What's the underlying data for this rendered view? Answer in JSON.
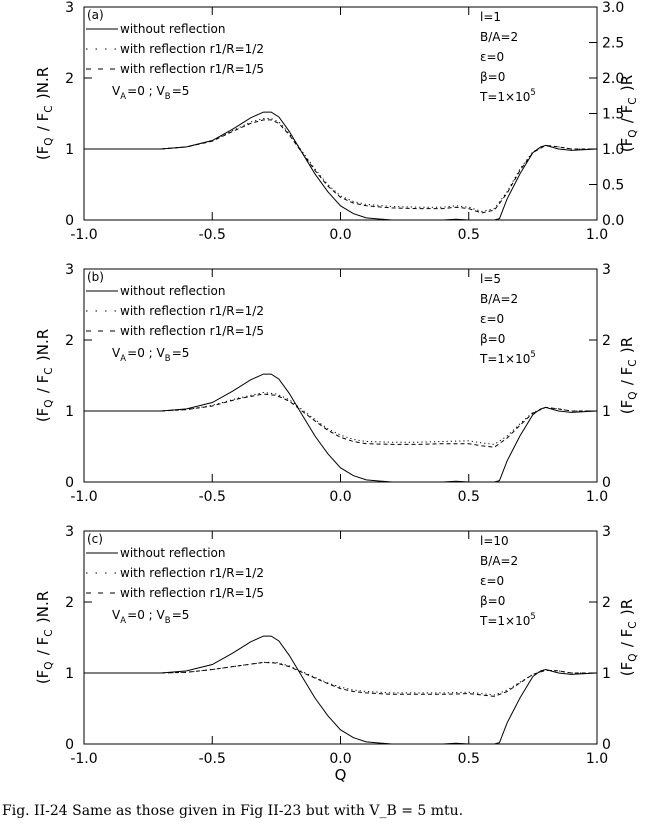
{
  "caption": "Fig. II-24 Same as those given in Fig II-23 but with V_B = 5 mtu.",
  "chart_data": [
    {
      "type": "line",
      "panel_label": "(a)",
      "xlabel": "",
      "ylabel_left": "(F_Q / F_C )N.R",
      "ylabel_right": "(F_Q / F_C )R",
      "xlim": [
        -1.0,
        1.0
      ],
      "ylim": [
        0,
        3
      ],
      "x_ticks": [
        "-1.0",
        "-0.5",
        "0.0",
        "0.5",
        "1.0"
      ],
      "y_ticks_left": [
        "0",
        "1",
        "2",
        "3"
      ],
      "y_ticks_right": [
        "0.0",
        "0.5",
        "1.0",
        "1.5",
        "2.0",
        "2.5",
        "3.0"
      ],
      "right_tick_values": [
        0.0,
        0.5,
        1.0,
        1.5,
        2.0,
        2.5,
        3.0
      ],
      "legend": [
        "without reflection",
        "with reflection r1/R=1/2",
        "with reflection r1/R=1/5"
      ],
      "velocity_note": "V_A=0 ; V_B=5",
      "params": [
        "l=1",
        "B/A=2",
        "ε=0",
        "β=0",
        "T=1×10^5"
      ],
      "series": [
        {
          "name": "without reflection",
          "style": "solid",
          "x": [
            -1.0,
            -0.7,
            -0.6,
            -0.5,
            -0.42,
            -0.35,
            -0.3,
            -0.27,
            -0.24,
            -0.2,
            -0.15,
            -0.1,
            -0.05,
            0.0,
            0.05,
            0.1,
            0.2,
            0.3,
            0.4,
            0.45,
            0.5,
            0.55,
            0.6,
            0.62,
            0.65,
            0.7,
            0.75,
            0.78,
            0.8,
            0.85,
            0.9,
            1.0
          ],
          "y": [
            1.0,
            1.0,
            1.03,
            1.12,
            1.28,
            1.44,
            1.52,
            1.52,
            1.45,
            1.25,
            0.95,
            0.65,
            0.4,
            0.2,
            0.09,
            0.03,
            0.0,
            0.0,
            0.0,
            0.01,
            0.0,
            0.0,
            0.0,
            0.02,
            0.3,
            0.65,
            0.95,
            1.03,
            1.05,
            1.0,
            0.98,
            1.0
          ]
        },
        {
          "name": "with reflection r1/R=1/2",
          "style": "dotted",
          "x": [
            -1.0,
            -0.7,
            -0.6,
            -0.5,
            -0.42,
            -0.35,
            -0.3,
            -0.27,
            -0.24,
            -0.2,
            -0.15,
            -0.1,
            -0.05,
            0.0,
            0.05,
            0.1,
            0.2,
            0.3,
            0.4,
            0.45,
            0.5,
            0.55,
            0.6,
            0.65,
            0.7,
            0.75,
            0.8,
            0.85,
            0.9,
            1.0
          ],
          "y": [
            1.0,
            1.0,
            1.03,
            1.12,
            1.26,
            1.38,
            1.43,
            1.43,
            1.38,
            1.22,
            0.97,
            0.72,
            0.5,
            0.34,
            0.26,
            0.22,
            0.19,
            0.18,
            0.18,
            0.2,
            0.18,
            0.12,
            0.16,
            0.4,
            0.72,
            0.96,
            1.05,
            1.03,
            1.0,
            1.0
          ]
        },
        {
          "name": "with reflection r1/R=1/5",
          "style": "dashed",
          "x": [
            -1.0,
            -0.7,
            -0.6,
            -0.5,
            -0.42,
            -0.35,
            -0.3,
            -0.27,
            -0.24,
            -0.2,
            -0.15,
            -0.1,
            -0.05,
            0.0,
            0.05,
            0.1,
            0.2,
            0.3,
            0.4,
            0.45,
            0.5,
            0.55,
            0.6,
            0.65,
            0.7,
            0.75,
            0.8,
            0.85,
            0.9,
            1.0
          ],
          "y": [
            1.0,
            1.0,
            1.03,
            1.11,
            1.25,
            1.36,
            1.41,
            1.41,
            1.36,
            1.2,
            0.95,
            0.7,
            0.48,
            0.32,
            0.24,
            0.2,
            0.17,
            0.16,
            0.16,
            0.18,
            0.16,
            0.1,
            0.14,
            0.38,
            0.7,
            0.95,
            1.05,
            1.03,
            1.0,
            1.0
          ]
        }
      ]
    },
    {
      "type": "line",
      "panel_label": "(b)",
      "xlabel": "",
      "ylabel_left": "(F_Q / F_C )N.R",
      "ylabel_right": "(F_Q / F_C )R",
      "xlim": [
        -1.0,
        1.0
      ],
      "ylim": [
        0,
        3
      ],
      "x_ticks": [
        "-1.0",
        "-0.5",
        "0.0",
        "0.5",
        "1.0"
      ],
      "y_ticks_left": [
        "0",
        "1",
        "2",
        "3"
      ],
      "y_ticks_right": [
        "0",
        "1",
        "2",
        "3"
      ],
      "right_tick_values": [
        0,
        1,
        2,
        3
      ],
      "legend": [
        "without reflection",
        "with reflection r1/R=1/2",
        "with reflection r1/R=1/5"
      ],
      "velocity_note": "V_A=0 ; V_B=5",
      "params": [
        "l=5",
        "B/A=2",
        "ε=0",
        "β=0",
        "T=1×10^5"
      ],
      "series": [
        {
          "name": "without reflection",
          "style": "solid",
          "x": [
            -1.0,
            -0.7,
            -0.6,
            -0.5,
            -0.42,
            -0.35,
            -0.3,
            -0.27,
            -0.24,
            -0.2,
            -0.15,
            -0.1,
            -0.05,
            0.0,
            0.05,
            0.1,
            0.2,
            0.3,
            0.4,
            0.45,
            0.5,
            0.55,
            0.6,
            0.62,
            0.65,
            0.7,
            0.75,
            0.78,
            0.8,
            0.85,
            0.9,
            1.0
          ],
          "y": [
            1.0,
            1.0,
            1.03,
            1.12,
            1.28,
            1.44,
            1.52,
            1.52,
            1.45,
            1.25,
            0.95,
            0.65,
            0.4,
            0.2,
            0.09,
            0.03,
            0.0,
            0.0,
            0.0,
            0.01,
            0.0,
            0.0,
            0.0,
            0.02,
            0.3,
            0.65,
            0.95,
            1.03,
            1.05,
            1.0,
            0.98,
            1.0
          ]
        },
        {
          "name": "with reflection r1/R=1/2",
          "style": "dotted",
          "x": [
            -1.0,
            -0.7,
            -0.6,
            -0.5,
            -0.4,
            -0.3,
            -0.25,
            -0.2,
            -0.15,
            -0.1,
            -0.05,
            0.0,
            0.05,
            0.1,
            0.2,
            0.3,
            0.4,
            0.5,
            0.55,
            0.6,
            0.65,
            0.7,
            0.75,
            0.8,
            0.85,
            0.9,
            1.0
          ],
          "y": [
            1.0,
            1.0,
            1.02,
            1.08,
            1.18,
            1.26,
            1.24,
            1.16,
            1.02,
            0.88,
            0.75,
            0.66,
            0.6,
            0.57,
            0.56,
            0.56,
            0.57,
            0.58,
            0.55,
            0.53,
            0.65,
            0.82,
            0.98,
            1.05,
            1.03,
            1.0,
            1.0
          ]
        },
        {
          "name": "with reflection r1/R=1/5",
          "style": "dashed",
          "x": [
            -1.0,
            -0.7,
            -0.6,
            -0.5,
            -0.4,
            -0.3,
            -0.25,
            -0.2,
            -0.15,
            -0.1,
            -0.05,
            0.0,
            0.05,
            0.1,
            0.2,
            0.3,
            0.4,
            0.5,
            0.55,
            0.6,
            0.65,
            0.7,
            0.75,
            0.8,
            0.85,
            0.9,
            1.0
          ],
          "y": [
            1.0,
            1.0,
            1.02,
            1.07,
            1.17,
            1.24,
            1.22,
            1.14,
            1.0,
            0.86,
            0.73,
            0.63,
            0.57,
            0.54,
            0.53,
            0.53,
            0.54,
            0.54,
            0.51,
            0.49,
            0.62,
            0.8,
            0.97,
            1.05,
            1.03,
            1.0,
            1.0
          ]
        }
      ]
    },
    {
      "type": "line",
      "panel_label": "(c)",
      "xlabel": "Q",
      "ylabel_left": "(F_Q / F_C )N.R",
      "ylabel_right": "(F_Q / F_C )R",
      "xlim": [
        -1.0,
        1.0
      ],
      "ylim": [
        0,
        3
      ],
      "x_ticks": [
        "-1.0",
        "-0.5",
        "0.0",
        "0.5",
        "1.0"
      ],
      "y_ticks_left": [
        "0",
        "1",
        "2",
        "3"
      ],
      "y_ticks_right": [
        "0",
        "1",
        "2",
        "3"
      ],
      "right_tick_values": [
        0,
        1,
        2,
        3
      ],
      "legend": [
        "without reflection",
        "with reflection r1/R=1/2",
        "with reflection r1/R=1/5"
      ],
      "velocity_note": "V_A=0 ; V_B=5",
      "params": [
        "l=10",
        "B/A=2",
        "ε=0",
        "β=0",
        "T=1×10^5"
      ],
      "series": [
        {
          "name": "without reflection",
          "style": "solid",
          "x": [
            -1.0,
            -0.7,
            -0.6,
            -0.5,
            -0.42,
            -0.35,
            -0.3,
            -0.27,
            -0.24,
            -0.2,
            -0.15,
            -0.1,
            -0.05,
            0.0,
            0.05,
            0.1,
            0.2,
            0.3,
            0.4,
            0.45,
            0.5,
            0.55,
            0.6,
            0.62,
            0.65,
            0.7,
            0.75,
            0.78,
            0.8,
            0.85,
            0.9,
            1.0
          ],
          "y": [
            1.0,
            1.0,
            1.03,
            1.12,
            1.28,
            1.44,
            1.52,
            1.52,
            1.45,
            1.25,
            0.95,
            0.65,
            0.4,
            0.2,
            0.09,
            0.03,
            0.0,
            0.0,
            0.0,
            0.01,
            0.0,
            0.0,
            0.0,
            0.02,
            0.3,
            0.65,
            0.95,
            1.03,
            1.05,
            1.0,
            0.98,
            1.0
          ]
        },
        {
          "name": "with reflection r1/R=1/2",
          "style": "dotted",
          "x": [
            -1.0,
            -0.7,
            -0.6,
            -0.5,
            -0.4,
            -0.3,
            -0.25,
            -0.2,
            -0.15,
            -0.1,
            -0.05,
            0.0,
            0.05,
            0.1,
            0.2,
            0.3,
            0.4,
            0.5,
            0.55,
            0.6,
            0.65,
            0.7,
            0.75,
            0.8,
            0.85,
            0.9,
            1.0
          ],
          "y": [
            1.0,
            1.0,
            1.01,
            1.05,
            1.1,
            1.15,
            1.15,
            1.1,
            1.02,
            0.94,
            0.86,
            0.8,
            0.76,
            0.74,
            0.72,
            0.72,
            0.72,
            0.73,
            0.71,
            0.69,
            0.76,
            0.87,
            0.98,
            1.04,
            1.03,
            1.0,
            1.0
          ]
        },
        {
          "name": "with reflection r1/R=1/5",
          "style": "dashed",
          "x": [
            -1.0,
            -0.7,
            -0.6,
            -0.5,
            -0.4,
            -0.3,
            -0.25,
            -0.2,
            -0.15,
            -0.1,
            -0.05,
            0.0,
            0.05,
            0.1,
            0.2,
            0.3,
            0.4,
            0.5,
            0.55,
            0.6,
            0.65,
            0.7,
            0.75,
            0.8,
            0.85,
            0.9,
            1.0
          ],
          "y": [
            1.0,
            1.0,
            1.01,
            1.05,
            1.1,
            1.15,
            1.14,
            1.09,
            1.01,
            0.93,
            0.85,
            0.78,
            0.74,
            0.72,
            0.7,
            0.7,
            0.7,
            0.71,
            0.69,
            0.67,
            0.74,
            0.86,
            0.98,
            1.04,
            1.03,
            1.0,
            1.0
          ]
        }
      ]
    }
  ]
}
